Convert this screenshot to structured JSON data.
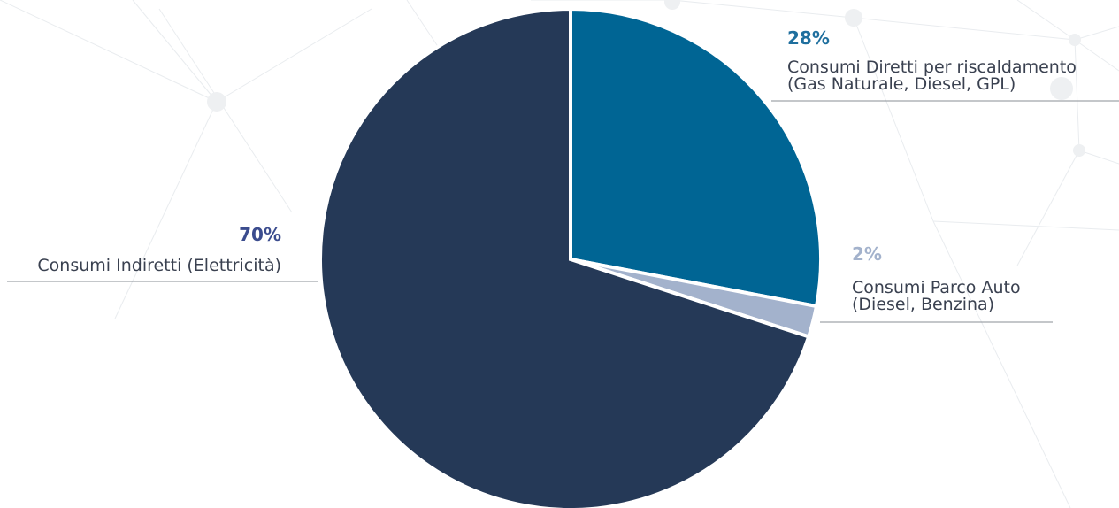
{
  "chart_data": {
    "type": "pie",
    "title": "",
    "start_angle_deg": 0,
    "direction": "clockwise",
    "legend": "none",
    "slices": [
      {
        "value": 28,
        "percent_label": "28%",
        "label_lines": [
          "Consumi Diretti per riscaldamento",
          "(Gas Naturale, Diesel, GPL)"
        ],
        "color": "#006594",
        "label_color": "#1f6f9e"
      },
      {
        "value": 2,
        "percent_label": "2%",
        "label_lines": [
          "Consumi Parco Auto",
          "(Diesel, Benzina)"
        ],
        "color": "#a3b2cc",
        "label_color": "#a3b2cc"
      },
      {
        "value": 70,
        "percent_label": "70%",
        "label_lines": [
          "Consumi Indiretti (Elettricità)"
        ],
        "color": "#253957",
        "label_color": "#3b4c8e"
      }
    ]
  }
}
